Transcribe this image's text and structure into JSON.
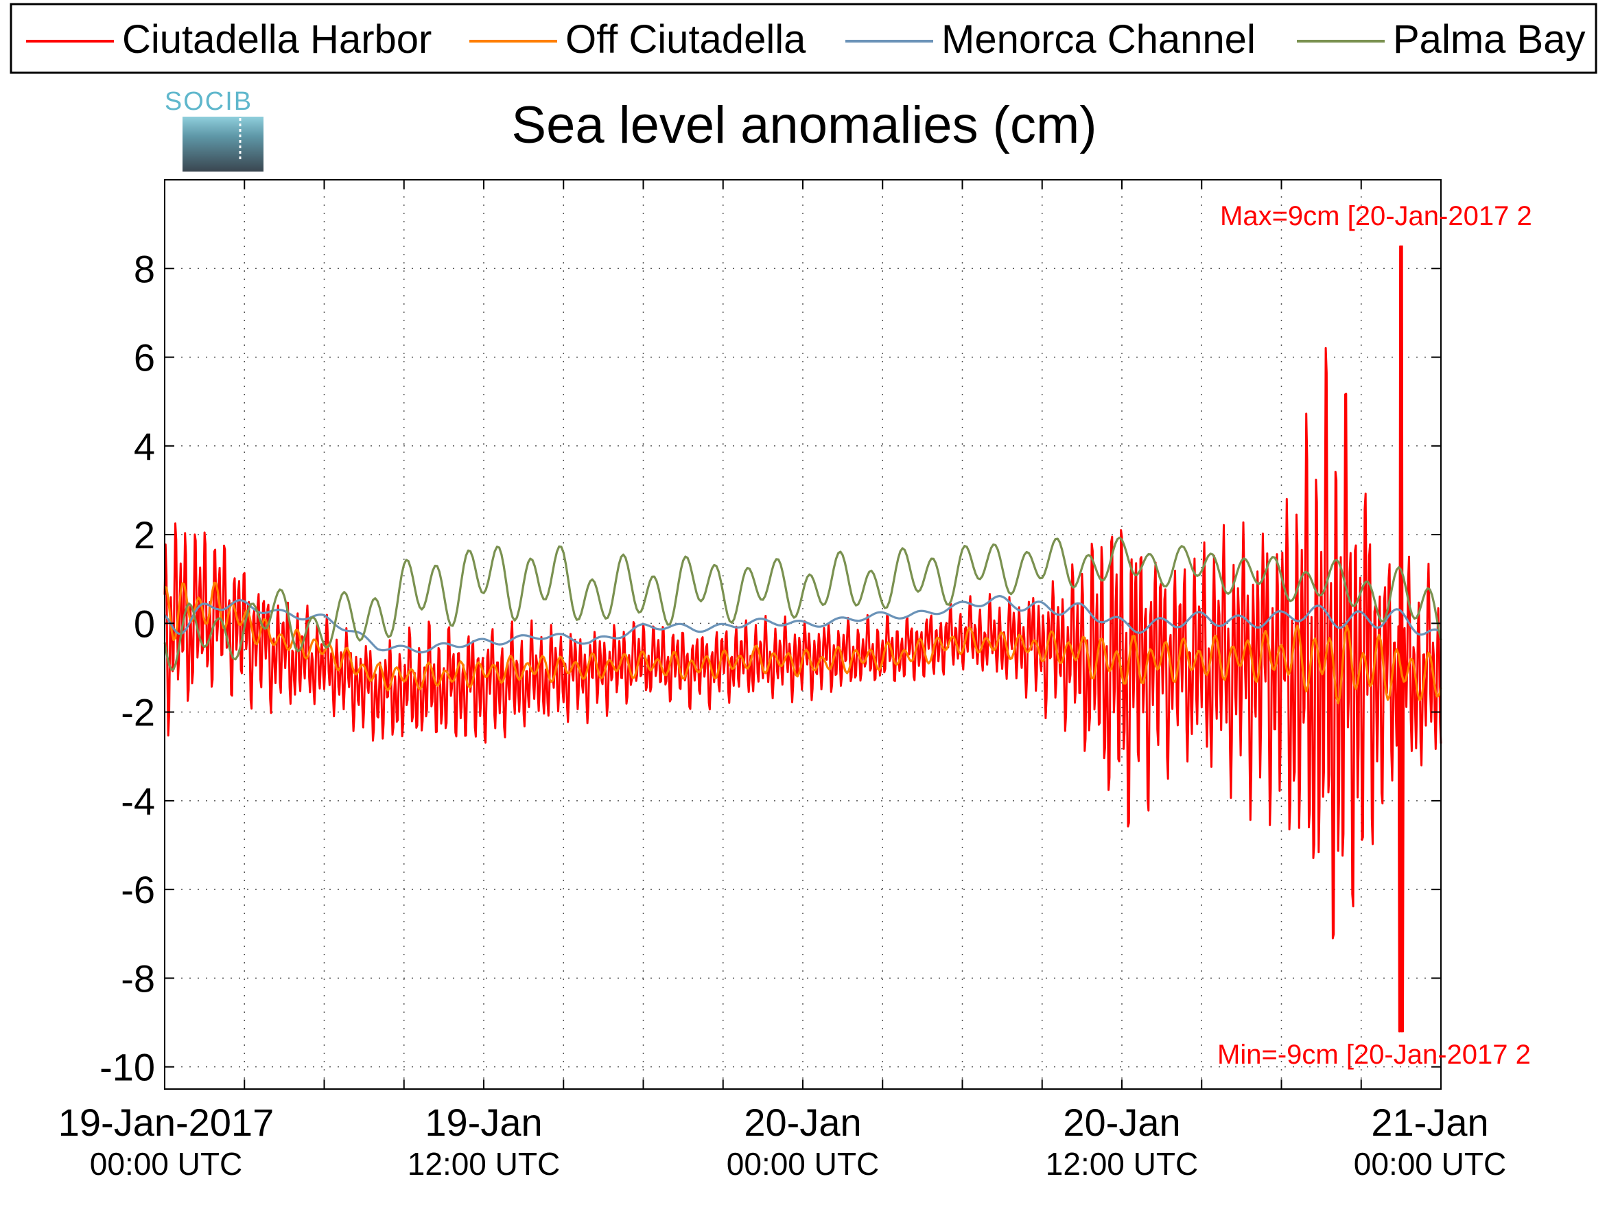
{
  "chart_data": {
    "type": "line",
    "title": "Sea level anomalies (cm)",
    "logo_text": "SOCIB",
    "xlabel": "",
    "ylabel": "",
    "ylim": [
      -10.5,
      10
    ],
    "xlim": [
      "2017-01-19 00:00",
      "2017-01-21 00:00"
    ],
    "yticks": [
      8,
      6,
      4,
      2,
      0,
      -2,
      -4,
      -6,
      -8,
      -10
    ],
    "xticks": [
      {
        "x": "2017-01-19 00:00",
        "line1": "19-Jan-2017",
        "line2": "00:00 UTC"
      },
      {
        "x": "2017-01-19 12:00",
        "line1": "19-Jan",
        "line2": "12:00 UTC"
      },
      {
        "x": "2017-01-20 00:00",
        "line1": "20-Jan",
        "line2": "00:00 UTC"
      },
      {
        "x": "2017-01-20 12:00",
        "line1": "20-Jan",
        "line2": "12:00 UTC"
      },
      {
        "x": "2017-01-21 00:00",
        "line1": "21-Jan",
        "line2": "00:00 UTC"
      }
    ],
    "grid": true,
    "legend_position": "top",
    "annotations": {
      "max": "Max=9cm [20-Jan-2017 2",
      "min": "Min=-9cm [20-Jan-2017 2"
    },
    "series": [
      {
        "name": "Ciutadella Harbor",
        "color": "#ff0000",
        "x": [
          "2017-01-19 00:00",
          "2017-01-19 02:00",
          "2017-01-19 04:00",
          "2017-01-19 06:00",
          "2017-01-19 08:00",
          "2017-01-19 10:00",
          "2017-01-19 12:00",
          "2017-01-19 14:00",
          "2017-01-19 16:00",
          "2017-01-19 18:00",
          "2017-01-19 20:00",
          "2017-01-19 22:00",
          "2017-01-20 00:00",
          "2017-01-20 02:00",
          "2017-01-20 04:00",
          "2017-01-20 06:00",
          "2017-01-20 08:00",
          "2017-01-20 10:00",
          "2017-01-20 12:00",
          "2017-01-20 14:00",
          "2017-01-20 16:00",
          "2017-01-20 18:00",
          "2017-01-20 20:00",
          "2017-01-20 22:00",
          "2017-01-21 00:00"
        ],
        "y": [
          0.0,
          0.3,
          -0.6,
          -0.9,
          -1.6,
          -1.4,
          -1.4,
          -1.2,
          -1.1,
          -0.8,
          -1.0,
          -0.8,
          -0.8,
          -0.7,
          -0.6,
          -0.3,
          -0.4,
          -0.6,
          -1.0,
          -0.8,
          -0.8,
          -0.9,
          -1.0,
          -1.2,
          -1.2
        ],
        "amplitude": [
          2.2,
          1.6,
          1.2,
          0.9,
          1.0,
          1.2,
          1.2,
          1.0,
          0.9,
          0.8,
          0.8,
          0.8,
          0.8,
          0.7,
          0.7,
          0.7,
          0.9,
          1.6,
          3.4,
          2.0,
          2.6,
          3.2,
          6.5,
          2.5,
          1.8
        ],
        "max": 8.5,
        "max_x": "2017-01-20 22:30",
        "min": -9.2,
        "min_x": "2017-01-20 22:30"
      },
      {
        "name": "Off Ciutadella",
        "color": "#ff7f00",
        "x": [
          "2017-01-19 00:00",
          "2017-01-19 02:00",
          "2017-01-19 04:00",
          "2017-01-19 06:00",
          "2017-01-19 08:00",
          "2017-01-19 10:00",
          "2017-01-19 12:00",
          "2017-01-19 14:00",
          "2017-01-19 16:00",
          "2017-01-19 18:00",
          "2017-01-19 20:00",
          "2017-01-19 22:00",
          "2017-01-20 00:00",
          "2017-01-20 02:00",
          "2017-01-20 04:00",
          "2017-01-20 06:00",
          "2017-01-20 08:00",
          "2017-01-20 10:00",
          "2017-01-20 12:00",
          "2017-01-20 14:00",
          "2017-01-20 16:00",
          "2017-01-20 18:00",
          "2017-01-20 20:00",
          "2017-01-20 22:00",
          "2017-01-21 00:00"
        ],
        "y": [
          0.3,
          0.4,
          -0.3,
          -0.6,
          -1.2,
          -1.2,
          -1.1,
          -1.0,
          -1.0,
          -0.9,
          -1.0,
          -0.8,
          -0.9,
          -0.8,
          -0.7,
          -0.4,
          -0.5,
          -0.6,
          -0.9,
          -0.8,
          -0.8,
          -0.7,
          -0.9,
          -1.0,
          -1.3
        ],
        "amplitude": [
          0.7,
          0.5,
          0.3,
          0.3,
          0.3,
          0.3,
          0.3,
          0.3,
          0.3,
          0.3,
          0.3,
          0.3,
          0.3,
          0.3,
          0.3,
          0.3,
          0.3,
          0.4,
          0.6,
          0.5,
          0.5,
          0.6,
          0.9,
          0.7,
          0.5
        ]
      },
      {
        "name": "Menorca Channel",
        "color": "#6b93b8",
        "x": [
          "2017-01-19 00:00",
          "2017-01-19 02:00",
          "2017-01-19 04:00",
          "2017-01-19 06:00",
          "2017-01-19 08:00",
          "2017-01-19 10:00",
          "2017-01-19 12:00",
          "2017-01-19 14:00",
          "2017-01-19 16:00",
          "2017-01-19 18:00",
          "2017-01-19 20:00",
          "2017-01-19 22:00",
          "2017-01-20 00:00",
          "2017-01-20 02:00",
          "2017-01-20 04:00",
          "2017-01-20 06:00",
          "2017-01-20 08:00",
          "2017-01-20 10:00",
          "2017-01-20 12:00",
          "2017-01-20 14:00",
          "2017-01-20 16:00",
          "2017-01-20 18:00",
          "2017-01-20 20:00",
          "2017-01-20 22:00",
          "2017-01-21 00:00"
        ],
        "y": [
          0.0,
          0.4,
          0.3,
          0.1,
          -0.5,
          -0.6,
          -0.4,
          -0.3,
          -0.4,
          -0.1,
          -0.1,
          0.0,
          0.0,
          0.1,
          0.2,
          0.4,
          0.5,
          0.3,
          0.0,
          0.0,
          0.1,
          0.1,
          0.2,
          0.1,
          -0.3
        ],
        "amplitude": [
          0.4,
          0.2,
          0.1,
          0.1,
          0.1,
          0.1,
          0.1,
          0.1,
          0.1,
          0.1,
          0.1,
          0.1,
          0.1,
          0.1,
          0.1,
          0.1,
          0.2,
          0.2,
          0.2,
          0.2,
          0.2,
          0.2,
          0.3,
          0.3,
          0.2
        ]
      },
      {
        "name": "Palma Bay",
        "color": "#7a9150",
        "x": [
          "2017-01-19 00:00",
          "2017-01-19 02:00",
          "2017-01-19 04:00",
          "2017-01-19 06:00",
          "2017-01-19 08:00",
          "2017-01-19 10:00",
          "2017-01-19 12:00",
          "2017-01-19 14:00",
          "2017-01-19 16:00",
          "2017-01-19 18:00",
          "2017-01-19 20:00",
          "2017-01-19 22:00",
          "2017-01-20 00:00",
          "2017-01-20 02:00",
          "2017-01-20 04:00",
          "2017-01-20 06:00",
          "2017-01-20 08:00",
          "2017-01-20 10:00",
          "2017-01-20 12:00",
          "2017-01-20 14:00",
          "2017-01-20 16:00",
          "2017-01-20 18:00",
          "2017-01-20 20:00",
          "2017-01-20 22:00",
          "2017-01-21 00:00"
        ],
        "y": [
          -0.2,
          -0.3,
          0.2,
          -0.2,
          0.3,
          0.8,
          1.0,
          1.0,
          0.7,
          0.7,
          0.8,
          0.8,
          0.8,
          0.9,
          1.0,
          1.2,
          1.3,
          1.3,
          1.4,
          1.3,
          1.2,
          1.0,
          0.9,
          0.6,
          0.3
        ],
        "amplitude": [
          0.9,
          0.6,
          0.7,
          0.6,
          0.8,
          0.9,
          0.9,
          0.9,
          0.8,
          0.8,
          0.8,
          0.7,
          0.7,
          0.7,
          0.7,
          0.7,
          0.6,
          0.6,
          0.5,
          0.5,
          0.5,
          0.5,
          0.5,
          0.7,
          0.8
        ]
      }
    ]
  }
}
